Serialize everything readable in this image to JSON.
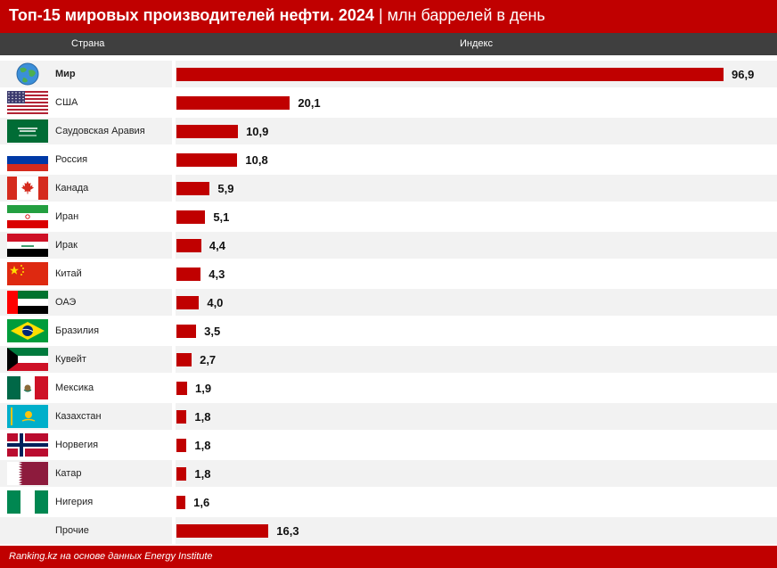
{
  "header": {
    "title_bold": "Топ-15 мировых производителей нефти. 2024",
    "title_sep": " | ",
    "title_unit": "млн баррелей в день",
    "col_country": "Страна",
    "col_index": "Индекс"
  },
  "chart_data": {
    "type": "bar",
    "orientation": "horizontal",
    "title": "Топ-15 мировых производителей нефти. 2024 | млн баррелей в день",
    "xlim": [
      0,
      96.9
    ],
    "categories": [
      "Мир",
      "США",
      "Саудовская Аравия",
      "Россия",
      "Канада",
      "Иран",
      "Ирак",
      "Китай",
      "ОАЭ",
      "Бразилия",
      "Кувейт",
      "Мексика",
      "Казахстан",
      "Норвегия",
      "Катар",
      "Нигерия",
      "Прочие"
    ],
    "values": [
      96.9,
      20.1,
      10.9,
      10.8,
      5.9,
      5.1,
      4.4,
      4.3,
      4.0,
      3.5,
      2.7,
      1.9,
      1.8,
      1.8,
      1.8,
      1.6,
      16.3
    ],
    "value_labels": [
      "96,9",
      "20,1",
      "10,9",
      "10,8",
      "5,9",
      "5,1",
      "4,4",
      "4,3",
      "4,0",
      "3,5",
      "2,7",
      "1,9",
      "1,8",
      "1,8",
      "1,8",
      "1,6",
      "16,3"
    ],
    "flag_icons": [
      "globe-icon",
      "usa-flag-icon",
      "saudi-arabia-flag-icon",
      "russia-flag-icon",
      "canada-flag-icon",
      "iran-flag-icon",
      "iraq-flag-icon",
      "china-flag-icon",
      "uae-flag-icon",
      "brazil-flag-icon",
      "kuwait-flag-icon",
      "mexico-flag-icon",
      "kazakhstan-flag-icon",
      "norway-flag-icon",
      "qatar-flag-icon",
      "nigeria-flag-icon",
      ""
    ],
    "bar_color": "#c00000"
  },
  "footer": {
    "source": "Ranking.kz на основе данных Energy Institute"
  }
}
